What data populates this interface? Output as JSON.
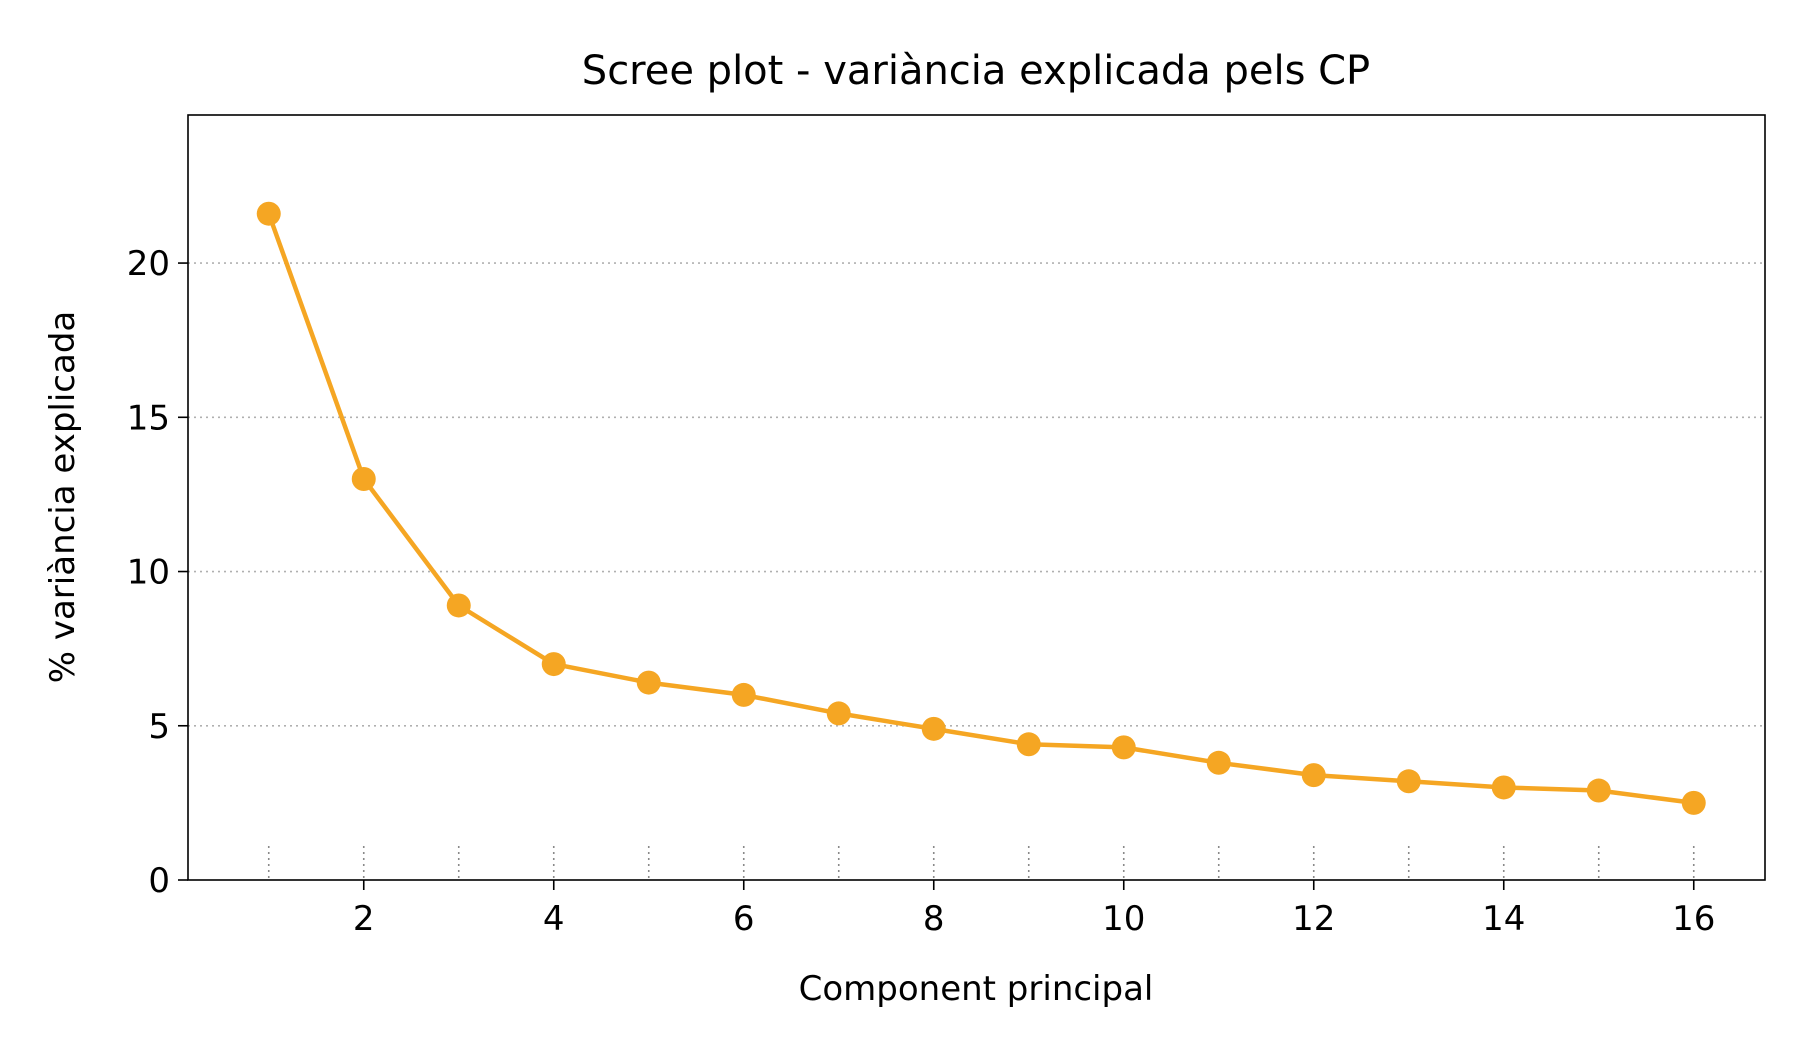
{
  "chart_data": {
    "type": "line",
    "title": "Scree plot - variància explicada pels CP",
    "xlabel": "Component principal",
    "ylabel": "% variància explicada",
    "x": [
      1,
      2,
      3,
      4,
      5,
      6,
      7,
      8,
      9,
      10,
      11,
      12,
      13,
      14,
      15,
      16
    ],
    "series": [
      {
        "values": [
          21.6,
          13.0,
          8.9,
          7.0,
          6.4,
          6.0,
          5.4,
          4.9,
          4.4,
          4.3,
          3.8,
          3.4,
          3.2,
          3.0,
          2.9,
          2.5
        ],
        "color": "#F5A623"
      }
    ],
    "xlim": [
      0.15,
      16.75
    ],
    "ylim": [
      0,
      24.8
    ],
    "xticks": [
      "2",
      "4",
      "6",
      "8",
      "10",
      "12",
      "14",
      "16"
    ],
    "yticks": [
      "0",
      "5",
      "10",
      "15",
      "20"
    ],
    "grid": "y dotted; vertical dotted ticks at each component near baseline",
    "legend": "none"
  }
}
